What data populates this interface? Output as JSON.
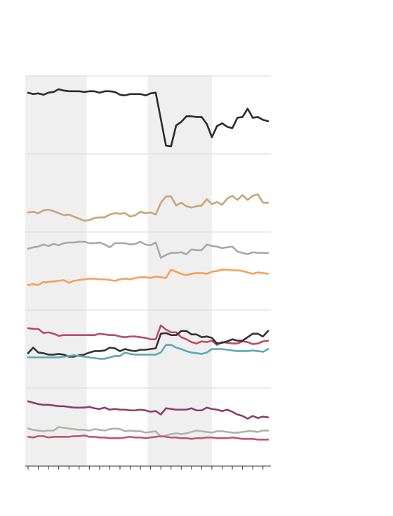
{
  "chart_data": {
    "type": "line",
    "title": "",
    "xlabel": "",
    "ylabel": "",
    "x": [
      1,
      2,
      3,
      4,
      5,
      6,
      7,
      8,
      9,
      10,
      11,
      12,
      13,
      14,
      15,
      16,
      17,
      18,
      19,
      20,
      21,
      22,
      23,
      24,
      25,
      26,
      27,
      28,
      29,
      30,
      31,
      32,
      33,
      34,
      35,
      36,
      37,
      38,
      39,
      40,
      41,
      42,
      43,
      44,
      45,
      46,
      47,
      48
    ],
    "shaded_bands": [
      [
        1,
        12.5
      ],
      [
        25,
        37
      ]
    ],
    "grid": "horizontal",
    "legend": "none",
    "colors": {
      "band": "#efefef",
      "gridline": "#d9d9d9",
      "axis": "#333333"
    },
    "panels": [
      {
        "ylim": [
          0,
          100
        ],
        "series": [
          {
            "color": "#2b2b2b",
            "values": [
              82,
              80,
              81,
              79,
              82,
              83,
              87,
              85,
              84,
              84,
              84,
              83,
              84,
              84,
              82,
              84,
              84,
              83,
              79,
              78,
              80,
              80,
              80,
              78,
              81,
              82,
              44,
              6,
              5,
              35,
              40,
              48,
              48,
              47,
              47,
              37,
              18,
              34,
              38,
              33,
              31,
              46,
              47,
              59,
              46,
              47,
              43,
              41
            ]
          }
        ]
      },
      {
        "ylim": [
          0,
          100
        ],
        "series": [
          {
            "color": "#c9a479",
            "values": [
              22,
              23,
              21,
              25,
              26,
              24,
              21,
              18,
              19,
              16,
              13,
              10,
              11,
              14,
              15,
              15,
              19,
              21,
              20,
              21,
              16,
              18,
              23,
              21,
              22,
              19,
              36,
              45,
              45,
              32,
              36,
              31,
              29,
              31,
              32,
              41,
              34,
              37,
              33,
              42,
              46,
              40,
              47,
              40,
              46,
              48,
              36,
              36
            ]
          }
        ]
      },
      {
        "ylim": [
          0,
          100
        ],
        "series": [
          {
            "color": "#a8a8a8",
            "values": [
              82,
              84,
              85,
              88,
              86,
              89,
              87,
              90,
              91,
              91,
              92,
              92,
              90,
              90,
              91,
              88,
              84,
              90,
              90,
              90,
              88,
              89,
              92,
              88,
              87,
              91,
              69,
              73,
              76,
              76,
              77,
              74,
              81,
              80,
              80,
              88,
              86,
              85,
              83,
              84,
              85,
              78,
              76,
              74,
              77,
              76,
              76,
              76
            ]
          },
          {
            "color": "#f4a05a",
            "values": [
              30,
              31,
              30,
              34,
              34,
              35,
              36,
              37,
              33,
              36,
              37,
              38,
              39,
              39,
              38,
              38,
              37,
              36,
              38,
              39,
              38,
              40,
              41,
              41,
              40,
              42,
              41,
              40,
              52,
              49,
              46,
              44,
              46,
              47,
              47,
              46,
              49,
              50,
              52,
              52,
              51,
              51,
              50,
              48,
              46,
              48,
              47,
              46
            ]
          }
        ]
      },
      {
        "ylim": [
          0,
          100
        ],
        "series": [
          {
            "color": "#b94c67",
            "values": [
              80,
              79,
              79,
              73,
              74,
              72,
              69,
              70,
              70,
              70,
              70,
              70,
              70,
              70,
              72,
              71,
              70,
              70,
              68,
              67,
              68,
              68,
              67,
              66,
              64,
              64,
              84,
              78,
              74,
              74,
              67,
              64,
              60,
              58,
              61,
              60,
              62,
              56,
              60,
              59,
              58,
              58,
              61,
              60,
              57,
              58,
              61,
              62
            ]
          },
          {
            "color": "#333333",
            "values": [
              44,
              52,
              45,
              44,
              42,
              42,
              43,
              42,
              39,
              39,
              41,
              42,
              45,
              47,
              47,
              48,
              52,
              51,
              47,
              50,
              48,
              47,
              49,
              49,
              50,
              51,
              72,
              73,
              70,
              70,
              76,
              76,
              71,
              71,
              67,
              68,
              66,
              58,
              59,
              61,
              64,
              62,
              62,
              67,
              72,
              72,
              68,
              76
            ]
          },
          {
            "color": "#5ea6b7",
            "values": [
              38,
              38,
              38,
              38,
              38,
              38,
              38,
              39,
              40,
              41,
              40,
              39,
              38,
              37,
              36,
              36,
              38,
              40,
              40,
              45,
              43,
              42,
              42,
              42,
              42,
              42,
              45,
              56,
              56,
              52,
              50,
              47,
              45,
              44,
              43,
              45,
              50,
              50,
              50,
              49,
              48,
              47,
              47,
              47,
              48,
              47,
              46,
              50
            ]
          }
        ]
      },
      {
        "ylim": [
          0,
          100
        ],
        "series": [
          {
            "color": "#8c3e66",
            "values": [
              87,
              85,
              83,
              82,
              82,
              81,
              80,
              80,
              79,
              78,
              78,
              78,
              79,
              77,
              76,
              78,
              75,
              76,
              75,
              75,
              74,
              74,
              75,
              74,
              72,
              73,
              68,
              77,
              76,
              75,
              75,
              75,
              77,
              74,
              74,
              78,
              76,
              75,
              73,
              75,
              72,
              68,
              66,
              62,
              66,
              63,
              65,
              64
            ]
          },
          {
            "color": "#a9b8a3",
            "values": [
              48,
              46,
              45,
              44,
              45,
              45,
              50,
              49,
              48,
              47,
              46,
              46,
              45,
              47,
              46,
              45,
              47,
              48,
              47,
              44,
              45,
              44,
              44,
              42,
              43,
              44,
              36,
              38,
              40,
              41,
              40,
              41,
              43,
              45,
              44,
              43,
              42,
              44,
              44,
              43,
              42,
              42,
              43,
              44,
              44,
              43,
              45,
              45
            ]
          },
          {
            "color": "#c05671",
            "values": [
              36,
              35,
              37,
              37,
              35,
              36,
              36,
              36,
              36,
              37,
              37,
              38,
              36,
              36,
              35,
              35,
              34,
              34,
              34,
              35,
              36,
              35,
              35,
              34,
              35,
              36,
              37,
              36,
              35,
              35,
              34,
              34,
              33,
              34,
              34,
              35,
              35,
              34,
              34,
              34,
              35,
              34,
              33,
              33,
              33,
              32,
              32,
              32
            ]
          }
        ]
      }
    ]
  }
}
